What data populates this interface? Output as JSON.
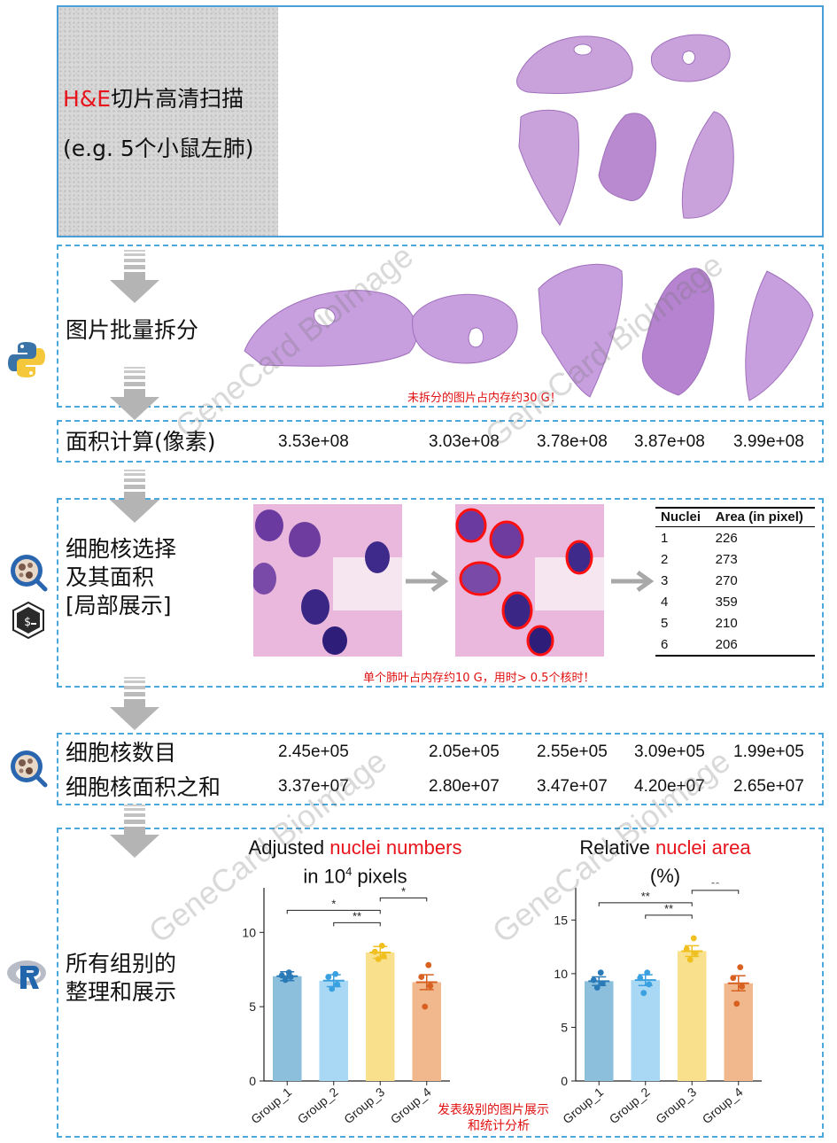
{
  "panel1": {
    "label_prefix": "H&E",
    "label_rest": "切片高清扫描",
    "label_line2": "(e.g. 5个小鼠左肺)"
  },
  "panel2": {
    "label": "图片批量拆分",
    "note": "未拆分的图片占内存约30 G！"
  },
  "panel3": {
    "label": "面积计算(像素)",
    "values": [
      "3.53e+08",
      "3.03e+08",
      "3.78e+08",
      "3.87e+08",
      "3.99e+08"
    ]
  },
  "panel4": {
    "label_line1": "细胞核选择",
    "label_line2": "及其面积",
    "label_line3": "[局部展示]",
    "note": "单个肺叶占内存约10 G，用时> 0.5个核时！",
    "table": {
      "headers": [
        "Nuclei",
        "Area (in pixel)"
      ],
      "rows": [
        [
          "1",
          "226"
        ],
        [
          "2",
          "273"
        ],
        [
          "3",
          "270"
        ],
        [
          "4",
          "359"
        ],
        [
          "5",
          "210"
        ],
        [
          "6",
          "206"
        ]
      ]
    }
  },
  "panel5": {
    "label_line1": "细胞核数目",
    "label_line2": "细胞核面积之和",
    "counts": [
      "2.45e+05",
      "2.05e+05",
      "2.55e+05",
      "3.09e+05",
      "1.99e+05"
    ],
    "areas": [
      "3.37e+07",
      "2.80e+07",
      "3.47e+07",
      "4.20e+07",
      "2.65e+07"
    ]
  },
  "panel6": {
    "label_line1": "所有组别的",
    "label_line2": "整理和展示",
    "note_line1": "发表级别的图片展示",
    "note_line2": "和统计分析",
    "chart1_title_a": "Adjusted ",
    "chart1_title_b": "nuclei numbers",
    "chart1_title_c": "in 10",
    "chart1_title_sup": "4",
    "chart1_title_d": " pixels",
    "chart2_title_a": "Relative ",
    "chart2_title_b": "nuclei area",
    "chart2_title_c": "(%)"
  },
  "watermark": "GeneCard BioImage",
  "icons": {
    "python": "python-logo-icon",
    "qupath": "qupath-logo-icon",
    "bash": "bash-terminal-icon",
    "r": "r-logo-icon"
  },
  "colors": {
    "frame": "#4a9fd8",
    "highlight": "#e8141c",
    "tissue": "#b07ac8",
    "group_1": "#8cbfdc",
    "group_2": "#a8d8f4",
    "group_3": "#f8e08c",
    "group_4": "#f0b88c"
  },
  "chart_data": [
    {
      "type": "bar",
      "categories": [
        "Group_1",
        "Group_2",
        "Group_3",
        "Group_4"
      ],
      "values": [
        7.05,
        6.75,
        8.65,
        6.65
      ],
      "errors": [
        0.3,
        0.4,
        0.4,
        0.5
      ],
      "points": [
        [
          6.8,
          7.0,
          7.1,
          7.3
        ],
        [
          6.2,
          6.5,
          7.0,
          7.2
        ],
        [
          8.2,
          8.4,
          8.7,
          9.1
        ],
        [
          5.0,
          6.4,
          7.0,
          7.8
        ]
      ],
      "ylim": [
        0,
        13
      ],
      "yticks": [
        0,
        5,
        10
      ],
      "significance": [
        {
          "pair": [
            "Group_1",
            "Group_3"
          ],
          "label": "*"
        },
        {
          "pair": [
            "Group_2",
            "Group_3"
          ],
          "label": "**"
        },
        {
          "pair": [
            "Group_3",
            "Group_4"
          ],
          "label": "*"
        }
      ]
    },
    {
      "type": "bar",
      "categories": [
        "Group_1",
        "Group_2",
        "Group_3",
        "Group_4"
      ],
      "values": [
        9.3,
        9.4,
        12.1,
        9.1
      ],
      "errors": [
        0.4,
        0.5,
        0.5,
        0.7
      ],
      "points": [
        [
          8.7,
          9.1,
          9.4,
          10.1
        ],
        [
          8.2,
          9.0,
          9.6,
          10.1
        ],
        [
          11.3,
          11.9,
          12.3,
          13.3
        ],
        [
          7.2,
          8.8,
          9.6,
          10.6
        ]
      ],
      "ylim": [
        0,
        18
      ],
      "yticks": [
        0,
        5,
        10,
        15
      ],
      "significance": [
        {
          "pair": [
            "Group_1",
            "Group_3"
          ],
          "label": "**"
        },
        {
          "pair": [
            "Group_2",
            "Group_3"
          ],
          "label": "**"
        },
        {
          "pair": [
            "Group_3",
            "Group_4"
          ],
          "label": "**"
        }
      ]
    }
  ]
}
